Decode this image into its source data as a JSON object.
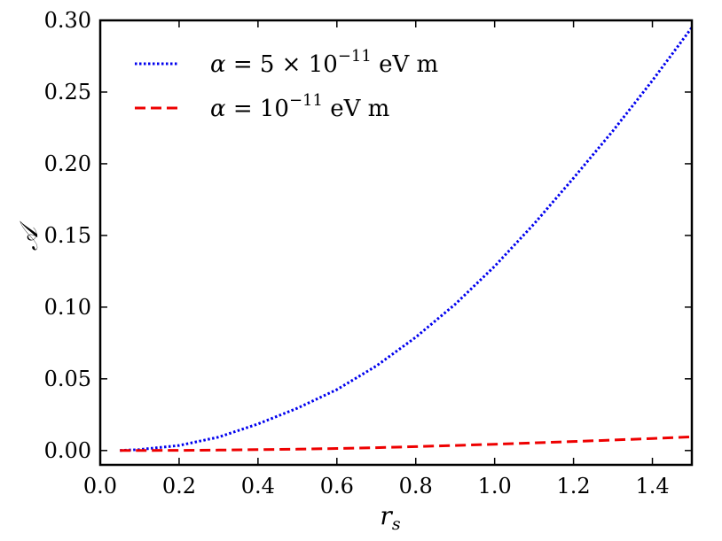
{
  "chart_data": {
    "type": "line",
    "xlabel": "r",
    "xlabel_sub": "s",
    "ylabel": "𝒜",
    "xlim": [
      0.0,
      1.5
    ],
    "ylim": [
      -0.01,
      0.3
    ],
    "xticks": [
      0.0,
      0.2,
      0.4,
      0.6,
      0.8,
      1.0,
      1.2,
      1.4
    ],
    "xtick_labels": [
      "0.0",
      "0.2",
      "0.4",
      "0.6",
      "0.8",
      "1.0",
      "1.2",
      "1.4"
    ],
    "yticks": [
      0.0,
      0.05,
      0.1,
      0.15,
      0.2,
      0.25,
      0.3
    ],
    "ytick_labels": [
      "0.00",
      "0.05",
      "0.10",
      "0.15",
      "0.20",
      "0.25",
      "0.30"
    ],
    "grid": false,
    "legend_position": "top-left",
    "series": [
      {
        "legend_var": "α",
        "legend_eq": " = 5 × 10",
        "legend_exp": "−11",
        "legend_unit": " eV m",
        "color": "#0000ee",
        "style": "dotted",
        "x": [
          0.05,
          0.1,
          0.2,
          0.3,
          0.4,
          0.5,
          0.6,
          0.7,
          0.8,
          0.9,
          1.0,
          1.1,
          1.2,
          1.3,
          1.4,
          1.5
        ],
        "y": [
          0.0,
          0.0007,
          0.0035,
          0.0093,
          0.0185,
          0.0295,
          0.0425,
          0.059,
          0.079,
          0.102,
          0.1285,
          0.158,
          0.19,
          0.223,
          0.258,
          0.295
        ]
      },
      {
        "legend_var": "α",
        "legend_eq": " = 10",
        "legend_exp": "−11",
        "legend_unit": " eV m",
        "color": "#ee0000",
        "style": "dashed",
        "x": [
          0.05,
          0.1,
          0.2,
          0.3,
          0.4,
          0.5,
          0.6,
          0.7,
          0.8,
          0.9,
          1.0,
          1.1,
          1.2,
          1.3,
          1.4,
          1.5
        ],
        "y": [
          0.0,
          2e-05,
          0.0001,
          0.0003,
          0.0006,
          0.0009,
          0.0014,
          0.002,
          0.0027,
          0.0035,
          0.0044,
          0.0053,
          0.0063,
          0.0073,
          0.0084,
          0.0095
        ]
      }
    ]
  }
}
